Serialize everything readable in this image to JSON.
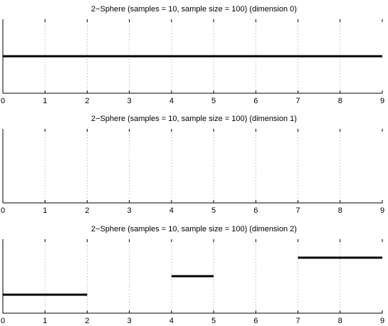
{
  "chart_data": [
    {
      "type": "barcode",
      "title": "2−Sphere (samples = 10, sample size = 100) (dimension 0)",
      "xlim": [
        0,
        9
      ],
      "xticks": [
        0,
        1,
        2,
        3,
        4,
        5,
        6,
        7,
        8,
        9
      ],
      "grid": true,
      "intervals": [
        [
          0,
          9
        ]
      ]
    },
    {
      "type": "barcode",
      "title": "2−Sphere (samples = 10, sample size = 100) (dimension 1)",
      "xlim": [
        0,
        9
      ],
      "xticks": [
        0,
        1,
        2,
        3,
        4,
        5,
        6,
        7,
        8,
        9
      ],
      "grid": true,
      "intervals": []
    },
    {
      "type": "barcode",
      "title": "2−Sphere (samples = 10, sample size = 100) (dimension 2)",
      "xlim": [
        0,
        9
      ],
      "xticks": [
        0,
        1,
        2,
        3,
        4,
        5,
        6,
        7,
        8,
        9
      ],
      "grid": true,
      "intervals": [
        [
          0,
          2
        ],
        [
          4,
          5
        ],
        [
          7,
          9
        ]
      ]
    }
  ]
}
